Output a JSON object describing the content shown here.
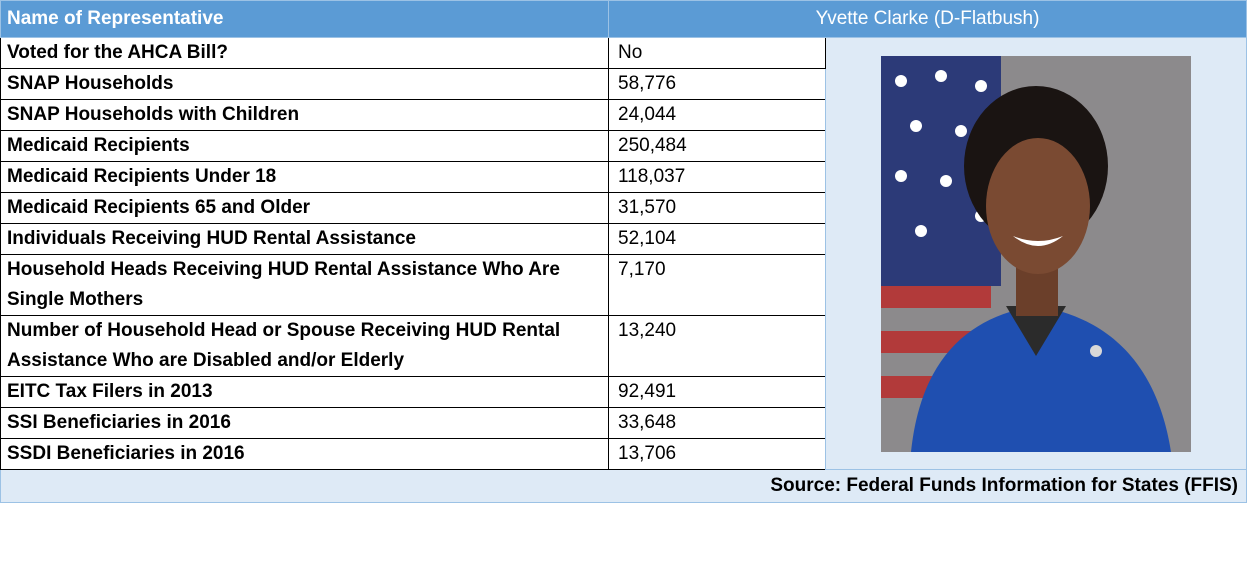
{
  "header": {
    "label": "Name of Representative",
    "value": "Yvette Clarke (D-Flatbush)"
  },
  "table": {
    "rows": [
      [
        "Voted for the AHCA Bill?",
        "No"
      ],
      [
        "SNAP Households",
        "58,776"
      ],
      [
        "SNAP Households with Children",
        "24,044"
      ],
      [
        "Medicaid Recipients",
        "250,484"
      ],
      [
        "Medicaid Recipients Under 18",
        "118,037"
      ],
      [
        "Medicaid Recipients 65 and Older",
        "31,570"
      ],
      [
        "Individuals Receiving HUD Rental Assistance",
        "52,104"
      ],
      [
        "Household Heads Receiving HUD Rental Assistance Who Are Single Mothers",
        "7,170"
      ],
      [
        "Number of Household Head or Spouse Receiving HUD Rental Assistance Who are Disabled and/or Elderly",
        "13,240"
      ],
      [
        "EITC Tax Filers in 2013",
        "92,491"
      ],
      [
        "SSI Beneficiaries in 2016",
        "33,648"
      ],
      [
        "SSDI Beneficiaries in 2016",
        "13,706"
      ]
    ]
  },
  "source": "Source: Federal Funds Information for States (FFIS)"
}
